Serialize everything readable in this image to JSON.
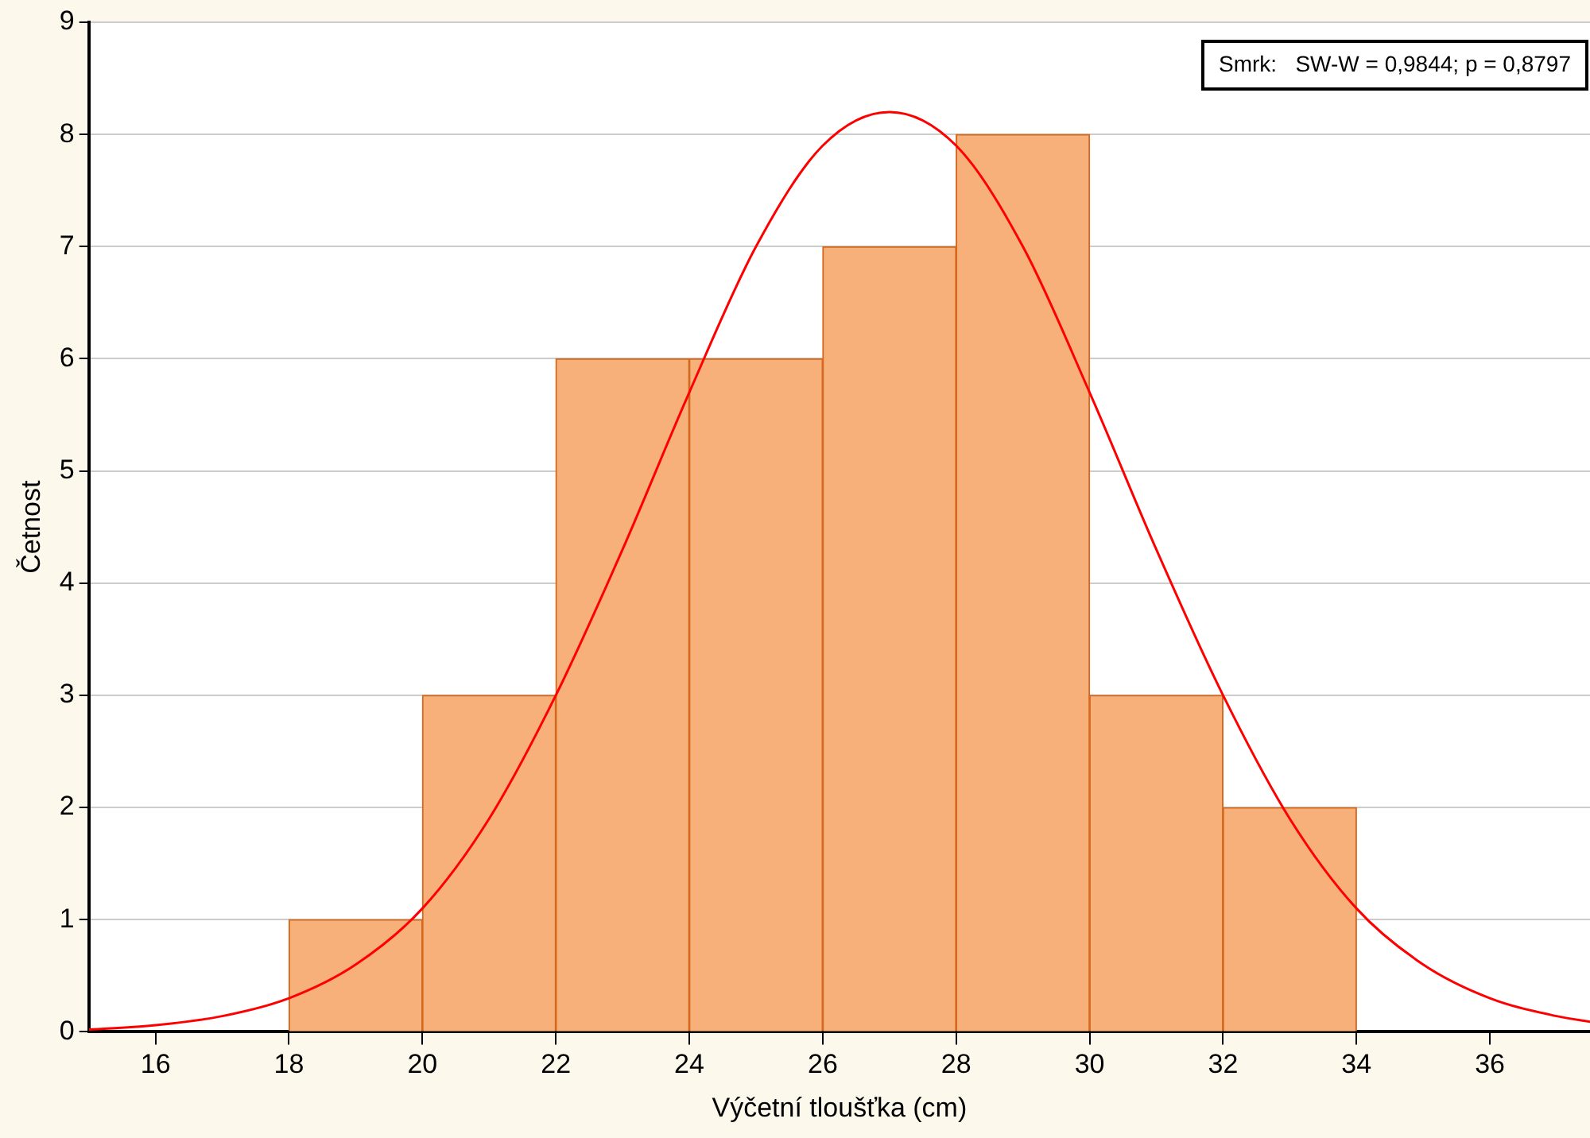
{
  "chart_data": {
    "type": "histogram",
    "xlabel": "Výčetní tloušťka (cm)",
    "ylabel": "Četnost",
    "bins": [
      18,
      20,
      22,
      24,
      26,
      28,
      30,
      32,
      34
    ],
    "values": [
      1,
      3,
      6,
      6,
      7,
      8,
      3,
      2
    ],
    "color": "#f7b07a",
    "series": [
      {
        "type": "line",
        "color": "#ff0000",
        "x": [
          15,
          16,
          17,
          18,
          19,
          20,
          21,
          22,
          23,
          24,
          25,
          26,
          27,
          28,
          29,
          30,
          31,
          32,
          33,
          34,
          35,
          36,
          37,
          37.5
        ],
        "values": [
          0.02,
          0.06,
          0.14,
          0.3,
          0.6,
          1.1,
          1.9,
          3.0,
          4.3,
          5.7,
          7.0,
          7.9,
          8.2,
          7.9,
          7.0,
          5.7,
          4.3,
          3.0,
          1.9,
          1.1,
          0.6,
          0.3,
          0.14,
          0.09
        ]
      }
    ],
    "annotations": [
      "Smrk:   SW-W = 0,9844; p = 0,8797"
    ],
    "xlim": [
      15,
      37.5
    ],
    "xticks": [
      16,
      18,
      20,
      22,
      24,
      26,
      28,
      30,
      32,
      34,
      36
    ],
    "ylim": [
      0,
      9
    ],
    "yticks": [
      0,
      1,
      2,
      3,
      4,
      5,
      6,
      7,
      8,
      9
    ],
    "grid": "y",
    "legend": false
  }
}
